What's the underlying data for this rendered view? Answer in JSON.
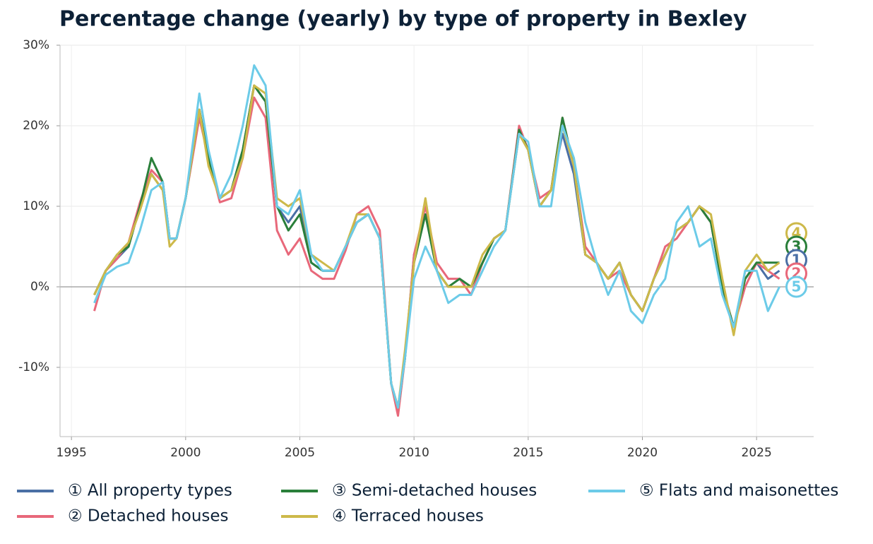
{
  "chart_data": {
    "type": "line",
    "title": "Percentage change (yearly) by type of property in Bexley",
    "x": [
      1996.0,
      1996.5,
      1997.0,
      1997.5,
      1998.0,
      1998.5,
      1999.0,
      1999.3,
      1999.6,
      2000.0,
      2000.6,
      2001.0,
      2001.5,
      2002.0,
      2002.5,
      2003.0,
      2003.5,
      2004.0,
      2004.5,
      2005.0,
      2005.5,
      2006.0,
      2006.5,
      2007.0,
      2007.5,
      2008.0,
      2008.5,
      2009.0,
      2009.3,
      2009.6,
      2010.0,
      2010.5,
      2011.0,
      2011.5,
      2012.0,
      2012.5,
      2013.0,
      2013.5,
      2014.0,
      2014.6,
      2015.0,
      2015.5,
      2016.0,
      2016.5,
      2017.0,
      2017.5,
      2018.0,
      2018.5,
      2019.0,
      2019.5,
      2020.0,
      2020.5,
      2021.0,
      2021.5,
      2022.0,
      2022.5,
      2023.0,
      2023.5,
      2024.0,
      2024.5,
      2025.0,
      2025.5,
      2026.0
    ],
    "series": [
      {
        "name": "① All property types",
        "label": "1",
        "color": "#4a6fa5",
        "values": [
          -1,
          2,
          3.5,
          5,
          10,
          14,
          12,
          6,
          6,
          11,
          22,
          16,
          11,
          12,
          17,
          25,
          23,
          10,
          8,
          10,
          3,
          2,
          2,
          5,
          8,
          9,
          6,
          -12,
          -15,
          -9,
          4,
          9,
          2,
          0,
          0,
          0,
          3,
          6,
          7,
          19,
          17,
          10,
          12,
          19,
          14,
          4,
          3,
          1,
          3,
          -1,
          -3,
          1,
          4,
          7,
          8,
          10,
          8,
          0,
          -5,
          1,
          3,
          1,
          2
        ]
      },
      {
        "name": "② Detached houses",
        "label": "2",
        "color": "#e8687a",
        "values": [
          -3,
          2,
          3.5,
          5.5,
          10.5,
          14.5,
          13,
          6,
          6,
          11,
          21,
          16,
          10.5,
          11,
          16,
          23.5,
          21,
          7,
          4,
          6,
          2,
          1,
          1,
          4.5,
          9,
          10,
          7,
          -12,
          -16,
          -9,
          4,
          10,
          3,
          1,
          1,
          -1,
          3,
          6,
          7,
          20,
          17,
          11,
          12,
          21,
          15,
          5,
          3,
          1,
          2,
          -1,
          -3,
          1,
          5,
          6,
          8,
          10,
          8,
          0,
          -5,
          0,
          3,
          2,
          1
        ]
      },
      {
        "name": "③ Semi-detached houses",
        "label": "3",
        "color": "#2a7f3a",
        "values": [
          -1,
          2,
          4,
          5,
          10,
          16,
          13,
          6,
          6,
          11,
          22,
          16,
          11,
          12,
          17,
          25,
          23,
          10,
          7,
          9,
          3,
          2,
          2,
          5,
          8,
          9,
          6,
          -12,
          -15,
          -9,
          3,
          9,
          2,
          0,
          1,
          0,
          3,
          6,
          7,
          19.5,
          17,
          10,
          12,
          21,
          15,
          4,
          3,
          1,
          3,
          -1,
          -3,
          1,
          4,
          7,
          8,
          10,
          8,
          0,
          -5,
          1,
          3,
          3,
          3
        ]
      },
      {
        "name": "④ Terraced houses",
        "label": "4",
        "color": "#cdb94a",
        "values": [
          -1,
          2,
          4,
          5.5,
          9.5,
          14,
          12,
          5,
          6,
          11,
          22,
          15,
          11,
          12,
          16,
          25,
          24,
          11,
          10,
          11,
          4,
          3,
          2,
          5,
          9,
          9,
          6,
          -12,
          -15,
          -8,
          3,
          11,
          2,
          0,
          0,
          0,
          4,
          6,
          7,
          19,
          17,
          10,
          12,
          20,
          15,
          4,
          3,
          1,
          3,
          -1,
          -3,
          1,
          4,
          7,
          8,
          10,
          9,
          1,
          -6,
          2,
          4,
          2,
          3
        ]
      },
      {
        "name": "⑤ Flats and maisonettes",
        "label": "5",
        "color": "#6ccbe8",
        "values": [
          -2,
          1.5,
          2.5,
          3,
          7,
          12,
          13,
          6,
          6,
          11,
          24,
          17,
          11,
          14,
          20,
          27.5,
          25,
          10,
          9,
          12,
          4,
          2,
          2,
          5,
          8,
          9,
          6,
          -12,
          -15,
          -9,
          1,
          5,
          2,
          -2,
          -1,
          -1,
          2,
          5,
          7,
          19,
          18,
          10,
          10,
          20,
          16,
          8,
          3,
          -1,
          2,
          -3,
          -4.5,
          -1,
          1,
          8,
          10,
          5,
          6,
          -1,
          -5,
          2,
          2,
          -3,
          0
        ]
      }
    ],
    "xlim": [
      1994.5,
      2027.5
    ],
    "xticks": [
      1995,
      2000,
      2005,
      2010,
      2015,
      2020,
      2025
    ],
    "ylim": [
      -18.6,
      30
    ],
    "yticks": [
      {
        "value": -10,
        "label": "-10%"
      },
      {
        "value": 0,
        "label": "0%"
      },
      {
        "value": 10,
        "label": "10%"
      },
      {
        "value": 20,
        "label": "20%"
      },
      {
        "value": 30,
        "label": "30%"
      }
    ],
    "grid": true
  }
}
